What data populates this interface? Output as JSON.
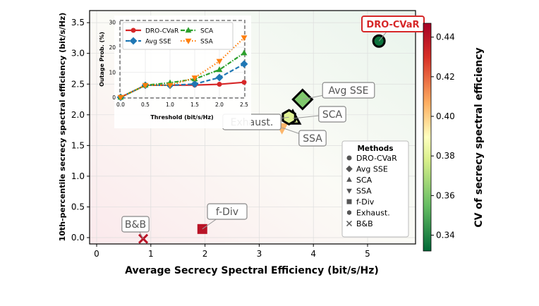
{
  "chart_data": [
    {
      "type": "scatter",
      "xlabel": "Average Secrecy Spectral Efficiency (bit/s/Hz)",
      "ylabel": "10th-percentile secrecy spectral efficiency (bit/s/Hz)",
      "xlim": [
        -0.1,
        5.9
      ],
      "ylim": [
        -0.1,
        3.6
      ],
      "xticks": [
        "0",
        "1",
        "2",
        "3",
        "4",
        "5"
      ],
      "yticks": [
        "0.0",
        "0.5",
        "1.0",
        "1.5",
        "2.0",
        "2.5",
        "3.0",
        "3.5"
      ],
      "grid": true,
      "legend_title": "Methods",
      "legend_position": "lower-right",
      "points": [
        {
          "name": "DRO-CVaR",
          "x": 5.21,
          "y": 3.2,
          "cv": 0.335,
          "marker": "circle"
        },
        {
          "name": "Avg SSE",
          "x": 3.8,
          "y": 2.25,
          "cv": 0.36,
          "marker": "diamond"
        },
        {
          "name": "SCA",
          "x": 3.62,
          "y": 1.94,
          "cv": 0.38,
          "marker": "triangle-up"
        },
        {
          "name": "SSA",
          "x": 3.42,
          "y": 1.79,
          "cv": 0.405,
          "marker": "triangle-down"
        },
        {
          "name": "f-Div",
          "x": 1.95,
          "y": 0.14,
          "cv": 0.44,
          "marker": "square"
        },
        {
          "name": "Exhaust.",
          "x": 3.55,
          "y": 1.96,
          "cv": 0.38,
          "marker": "hexagon"
        },
        {
          "name": "B&B",
          "x": 0.86,
          "y": -0.02,
          "cv": 0.44,
          "marker": "x"
        }
      ],
      "colorbar": {
        "label": "CV of secrecy spectral efficiency",
        "range": [
          0.332,
          0.447
        ],
        "ticks": [
          "0.34",
          "0.36",
          "0.38",
          "0.40",
          "0.42",
          "0.44"
        ],
        "colormap": "RdYlGn_r"
      }
    },
    {
      "type": "line",
      "xlabel": "Threshold (bit/s/Hz)",
      "ylabel": "Outage Prob. (%)",
      "x": [
        0.0,
        0.5,
        1.0,
        1.5,
        2.0,
        2.5
      ],
      "xticks": [
        "0.0",
        "0.5",
        "1.0",
        "1.5",
        "2.0",
        "2.5"
      ],
      "yticks": [
        "0",
        "10",
        "20",
        "30"
      ],
      "xlim": [
        0,
        2.55
      ],
      "ylim": [
        0,
        30
      ],
      "legend_position": "top",
      "series": [
        {
          "name": "DRO-CVaR",
          "values": [
            0,
            4.8,
            4.8,
            4.9,
            5.2,
            6.0
          ],
          "color": "#d62728",
          "style": "solid",
          "marker": "circle"
        },
        {
          "name": "Avg SSE",
          "values": [
            0,
            4.8,
            4.8,
            5.3,
            7.9,
            13.3
          ],
          "color": "#1f77b4",
          "style": "dashed",
          "marker": "diamond"
        },
        {
          "name": "SCA",
          "values": [
            0,
            4.8,
            5.8,
            7.3,
            11.0,
            17.7
          ],
          "color": "#2ca02c",
          "style": "dashdot",
          "marker": "triangle-up"
        },
        {
          "name": "SSA",
          "values": [
            0,
            4.8,
            4.8,
            7.8,
            14.4,
            23.8
          ],
          "color": "#ff7f0e",
          "style": "dotted",
          "marker": "triangle-down"
        }
      ]
    }
  ]
}
